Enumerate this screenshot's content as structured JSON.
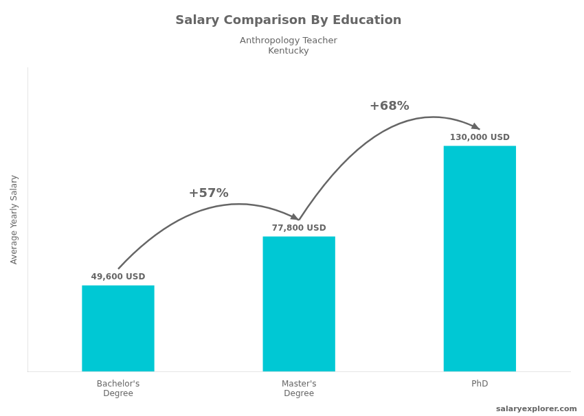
{
  "chart_data": {
    "type": "bar",
    "title": "Salary Comparison By Education",
    "subtitle": [
      "Anthropology Teacher",
      "Kentucky"
    ],
    "y_label": "Average Yearly Salary",
    "categories": [
      "Bachelor's\nDegree",
      "Master's\nDegree",
      "PhD"
    ],
    "values": [
      49600,
      77800,
      130000
    ],
    "value_labels": [
      "49,600 USD",
      "77,800 USD",
      "130,000 USD"
    ],
    "data_labels": true,
    "color": "#00c8d4",
    "annotations": [
      "+57%",
      "+68%"
    ],
    "watermark": "salaryexplorer.com",
    "ylim": [
      0,
      175000
    ],
    "tick_labels": "x",
    "grid": false
  }
}
